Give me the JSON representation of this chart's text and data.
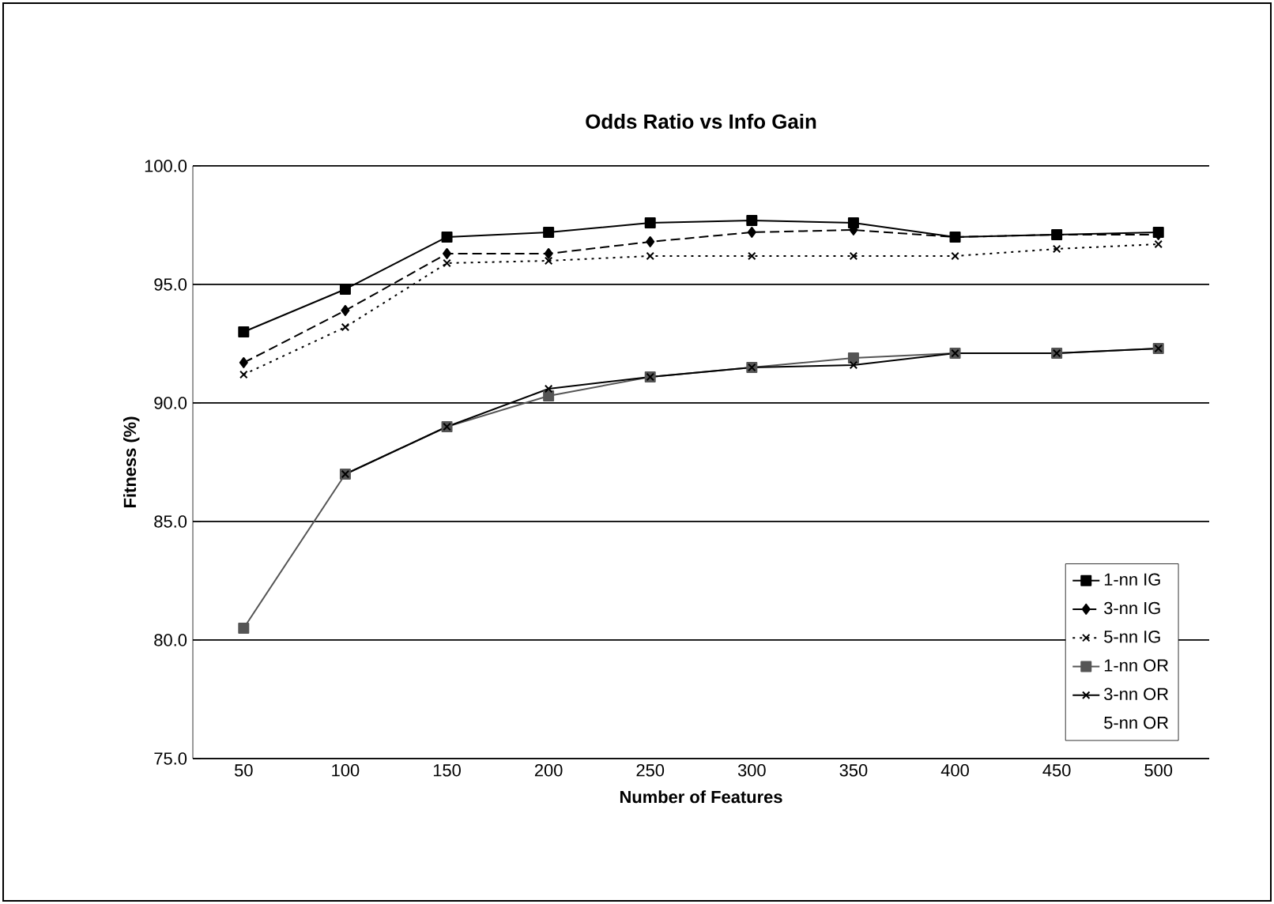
{
  "chart_data": {
    "type": "line",
    "title": "Odds Ratio vs Info Gain",
    "xlabel": "Number of Features",
    "ylabel": "Fitness (%)",
    "categories": [
      "50",
      "100",
      "150",
      "200",
      "250",
      "300",
      "350",
      "400",
      "450",
      "500"
    ],
    "ylim": [
      75,
      100
    ],
    "yticks": [
      {
        "value": 75,
        "label": "75.0"
      },
      {
        "value": 80,
        "label": "80.0"
      },
      {
        "value": 85,
        "label": "85.0"
      },
      {
        "value": 90,
        "label": "90.0"
      },
      {
        "value": 95,
        "label": "95.0"
      },
      {
        "value": 100,
        "label": "100.0"
      }
    ],
    "grid": "y",
    "legend": "bottom right",
    "series": [
      {
        "name": "1-nn IG",
        "color": "#000000",
        "marker": "square",
        "line_style": "solid",
        "values": [
          93.0,
          94.8,
          97.0,
          97.2,
          97.6,
          97.7,
          97.6,
          97.0,
          97.1,
          97.2
        ]
      },
      {
        "name": "3-nn IG",
        "color": "#000000",
        "marker": "diamond",
        "line_style": "dashed",
        "values": [
          91.7,
          93.9,
          96.3,
          96.3,
          96.8,
          97.2,
          97.3,
          97.0,
          97.1,
          97.1
        ]
      },
      {
        "name": "5-nn IG",
        "color": "#000000",
        "marker": "cross",
        "line_style": "dotted",
        "values": [
          91.2,
          93.2,
          95.9,
          96.0,
          96.2,
          96.2,
          96.2,
          96.2,
          96.5,
          96.7
        ]
      },
      {
        "name": "1-nn OR",
        "color": "#555555",
        "marker": "square",
        "line_style": "solid",
        "values": [
          80.5,
          87.0,
          89.0,
          90.3,
          91.1,
          91.5,
          91.9,
          92.1,
          92.1,
          92.3
        ]
      },
      {
        "name": "3-nn OR",
        "color": "#000000",
        "marker": "cross",
        "line_style": "solid",
        "values": [
          null,
          87.0,
          89.0,
          90.6,
          91.1,
          91.5,
          91.6,
          92.1,
          92.1,
          92.3
        ]
      },
      {
        "name": "5-nn OR",
        "values": [
          null,
          null,
          null,
          null,
          null,
          null,
          null,
          null,
          null,
          null
        ]
      }
    ]
  }
}
